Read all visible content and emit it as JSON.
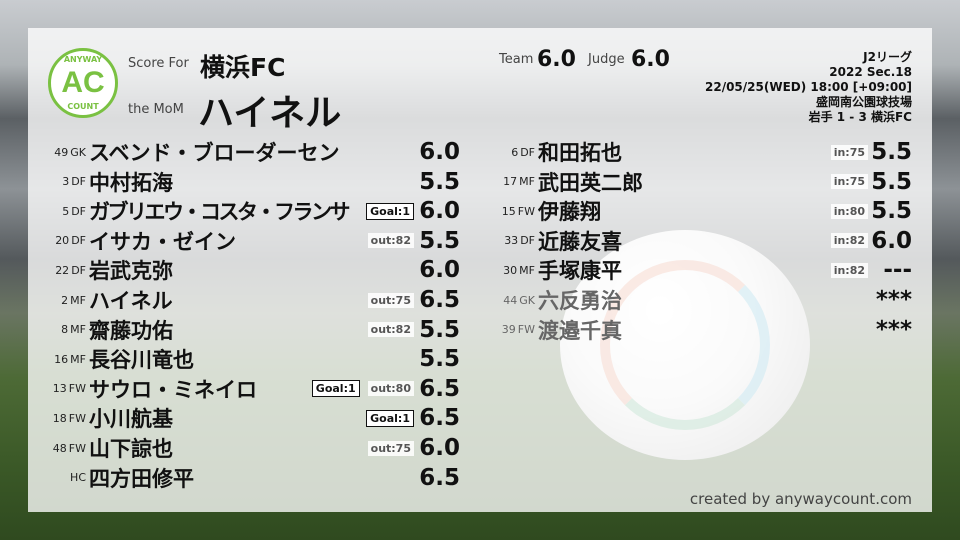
{
  "header": {
    "score_for_label": "Score For",
    "team": "横浜FC",
    "mom_label": "the MoM",
    "mom": "ハイネル",
    "team_score_label": "Team",
    "team_score": "6.0",
    "judge_label": "Judge",
    "judge_score": "6.0"
  },
  "logo": {
    "top": "ANYWAY",
    "center": "AC",
    "bottom": "COUNT",
    "color": "#7ac142"
  },
  "match": {
    "league": "J2リーグ",
    "section": "2022 Sec.18",
    "datetime": "22/05/25(WED) 18:00 [+09:00]",
    "venue": "盛岡南公園球技場",
    "result": "岩手 1 - 3 横浜FC"
  },
  "starters": [
    {
      "num": "49",
      "pos": "GK",
      "name": "スベンド・ブローダーセン",
      "goal": "",
      "sub": "",
      "rating": "6.0"
    },
    {
      "num": "3",
      "pos": "DF",
      "name": "中村拓海",
      "goal": "",
      "sub": "",
      "rating": "5.5"
    },
    {
      "num": "5",
      "pos": "DF",
      "name": "ガブリエウ・コスタ・フランサ",
      "goal": "Goal:1",
      "sub": "",
      "rating": "6.0"
    },
    {
      "num": "20",
      "pos": "DF",
      "name": "イサカ・ゼイン",
      "goal": "",
      "sub": "out:82",
      "rating": "5.5"
    },
    {
      "num": "22",
      "pos": "DF",
      "name": "岩武克弥",
      "goal": "",
      "sub": "",
      "rating": "6.0"
    },
    {
      "num": "2",
      "pos": "MF",
      "name": "ハイネル",
      "goal": "",
      "sub": "out:75",
      "rating": "6.5"
    },
    {
      "num": "8",
      "pos": "MF",
      "name": "齋藤功佑",
      "goal": "",
      "sub": "out:82",
      "rating": "5.5"
    },
    {
      "num": "16",
      "pos": "MF",
      "name": "長谷川竜也",
      "goal": "",
      "sub": "",
      "rating": "5.5"
    },
    {
      "num": "13",
      "pos": "FW",
      "name": "サウロ・ミネイロ",
      "goal": "Goal:1",
      "sub": "out:80",
      "rating": "6.5"
    },
    {
      "num": "18",
      "pos": "FW",
      "name": "小川航基",
      "goal": "Goal:1",
      "sub": "",
      "rating": "6.5"
    },
    {
      "num": "48",
      "pos": "FW",
      "name": "山下諒也",
      "goal": "",
      "sub": "out:75",
      "rating": "6.0"
    },
    {
      "num": "",
      "pos": "HC",
      "name": "四方田修平",
      "goal": "",
      "sub": "",
      "rating": "6.5"
    }
  ],
  "substitutes": [
    {
      "num": "6",
      "pos": "DF",
      "name": "和田拓也",
      "sub": "in:75",
      "rating": "5.5",
      "played": true
    },
    {
      "num": "17",
      "pos": "MF",
      "name": "武田英二郎",
      "sub": "in:75",
      "rating": "5.5",
      "played": true
    },
    {
      "num": "15",
      "pos": "FW",
      "name": "伊藤翔",
      "sub": "in:80",
      "rating": "5.5",
      "played": true
    },
    {
      "num": "33",
      "pos": "DF",
      "name": "近藤友喜",
      "sub": "in:82",
      "rating": "6.0",
      "played": true
    },
    {
      "num": "30",
      "pos": "MF",
      "name": "手塚康平",
      "sub": "in:82",
      "rating": "---",
      "played": true
    },
    {
      "num": "44",
      "pos": "GK",
      "name": "六反勇治",
      "sub": "",
      "rating": "***",
      "played": false
    },
    {
      "num": "39",
      "pos": "FW",
      "name": "渡邉千真",
      "sub": "",
      "rating": "***",
      "played": false
    }
  ],
  "credit": "created by anywaycount.com"
}
